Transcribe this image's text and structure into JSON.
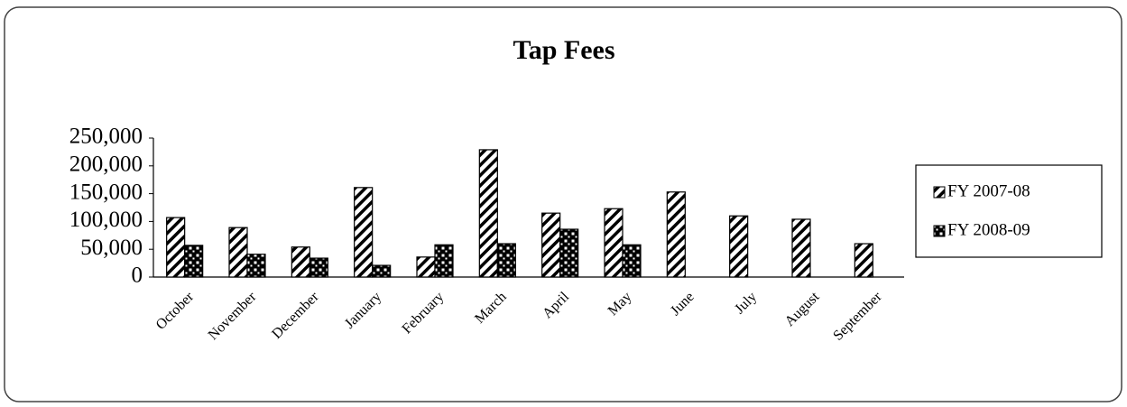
{
  "chart_data": {
    "type": "bar",
    "title": "Tap Fees",
    "categories": [
      "October",
      "November",
      "December",
      "January",
      "February",
      "March",
      "April",
      "May",
      "June",
      "July",
      "August",
      "September"
    ],
    "series": [
      {
        "name": "FY 2007-08",
        "color": "#000000",
        "pattern": "diagonal",
        "values": [
          107000,
          89000,
          54000,
          161000,
          36000,
          229000,
          115000,
          123000,
          153000,
          110000,
          104000,
          60000
        ]
      },
      {
        "name": "FY 2008-09",
        "color": "#000000",
        "pattern": "checker",
        "values": [
          57000,
          41000,
          34000,
          21000,
          58000,
          60000,
          86000,
          58000,
          null,
          null,
          null,
          null
        ]
      }
    ],
    "ylim": [
      0,
      250000
    ],
    "yticks": [
      0,
      {
        "value": 50000,
        "label": "50,000"
      },
      {
        "value": 100000,
        "label": "100,000"
      },
      {
        "value": 150000,
        "label": "150,000"
      },
      {
        "value": 200000,
        "label": "200,000"
      },
      {
        "value": 250000,
        "label": "250,000"
      }
    ],
    "grid": false,
    "legend": "right"
  }
}
